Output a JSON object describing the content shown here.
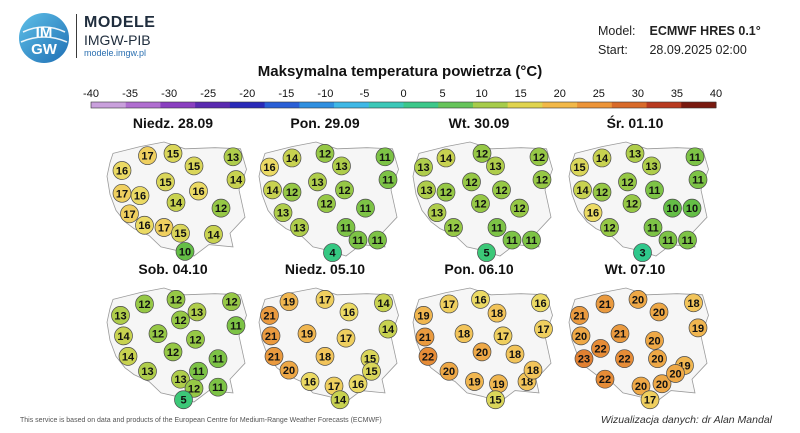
{
  "brand": {
    "logo_text_top": "IM",
    "logo_text_bottom": "GW",
    "title": "MODELE",
    "subtitle": "IMGW-PIB",
    "url": "modele.imgw.pl"
  },
  "model_info": {
    "model_label": "Model:",
    "model_value": "ECMWF HRES 0.1°",
    "start_label": "Start:",
    "start_value": "28.09.2025 02:00"
  },
  "title": "Maksymalna temperatura powietrza (°C)",
  "scale": {
    "ticks": [
      "-40",
      "-35",
      "-30",
      "-25",
      "-20",
      "-15",
      "-10",
      "-5",
      "0",
      "5",
      "10",
      "15",
      "20",
      "25",
      "30",
      "35",
      "40"
    ],
    "colors": [
      "#c9a0dc",
      "#b06ed0",
      "#8a3fc0",
      "#5a2ab0",
      "#2a2ab8",
      "#2a5fd6",
      "#2f8fe0",
      "#3fb8e6",
      "#3cc8b8",
      "#3cc88a",
      "#66c45a",
      "#a6cc4a",
      "#e0d44e",
      "#f2b848",
      "#ec9438",
      "#d86a2a",
      "#b83a20",
      "#7a1a10"
    ]
  },
  "maps": [
    {
      "day": "Niedz. 28.09",
      "points": [
        {
          "v": 17,
          "x": 0.33,
          "y": 0.12
        },
        {
          "v": 15,
          "x": 0.5,
          "y": 0.1
        },
        {
          "v": 13,
          "x": 0.9,
          "y": 0.13
        },
        {
          "v": 16,
          "x": 0.16,
          "y": 0.25
        },
        {
          "v": 15,
          "x": 0.64,
          "y": 0.21
        },
        {
          "v": 14,
          "x": 0.92,
          "y": 0.33
        },
        {
          "v": 17,
          "x": 0.16,
          "y": 0.45
        },
        {
          "v": 16,
          "x": 0.28,
          "y": 0.47
        },
        {
          "v": 15,
          "x": 0.45,
          "y": 0.35
        },
        {
          "v": 16,
          "x": 0.67,
          "y": 0.43
        },
        {
          "v": 17,
          "x": 0.21,
          "y": 0.63
        },
        {
          "v": 14,
          "x": 0.52,
          "y": 0.53
        },
        {
          "v": 12,
          "x": 0.82,
          "y": 0.58
        },
        {
          "v": 16,
          "x": 0.31,
          "y": 0.73
        },
        {
          "v": 17,
          "x": 0.44,
          "y": 0.75
        },
        {
          "v": 15,
          "x": 0.55,
          "y": 0.8
        },
        {
          "v": 14,
          "x": 0.77,
          "y": 0.81
        },
        {
          "v": 10,
          "x": 0.58,
          "y": 0.96
        }
      ]
    },
    {
      "day": "Pon. 29.09",
      "points": [
        {
          "v": 14,
          "x": 0.28,
          "y": 0.14
        },
        {
          "v": 12,
          "x": 0.5,
          "y": 0.1
        },
        {
          "v": 11,
          "x": 0.9,
          "y": 0.13
        },
        {
          "v": 16,
          "x": 0.13,
          "y": 0.22
        },
        {
          "v": 13,
          "x": 0.61,
          "y": 0.21
        },
        {
          "v": 11,
          "x": 0.92,
          "y": 0.33
        },
        {
          "v": 14,
          "x": 0.15,
          "y": 0.42
        },
        {
          "v": 12,
          "x": 0.28,
          "y": 0.44
        },
        {
          "v": 13,
          "x": 0.45,
          "y": 0.35
        },
        {
          "v": 12,
          "x": 0.63,
          "y": 0.42
        },
        {
          "v": 13,
          "x": 0.22,
          "y": 0.62
        },
        {
          "v": 12,
          "x": 0.51,
          "y": 0.54
        },
        {
          "v": 11,
          "x": 0.77,
          "y": 0.58
        },
        {
          "v": 13,
          "x": 0.33,
          "y": 0.75
        },
        {
          "v": 11,
          "x": 0.64,
          "y": 0.75
        },
        {
          "v": 11,
          "x": 0.72,
          "y": 0.86
        },
        {
          "v": 11,
          "x": 0.85,
          "y": 0.86
        },
        {
          "v": 4,
          "x": 0.55,
          "y": 0.97
        }
      ]
    },
    {
      "day": "Wt. 30.09",
      "points": [
        {
          "v": 14,
          "x": 0.28,
          "y": 0.14
        },
        {
          "v": 12,
          "x": 0.52,
          "y": 0.1
        },
        {
          "v": 12,
          "x": 0.9,
          "y": 0.13
        },
        {
          "v": 13,
          "x": 0.13,
          "y": 0.22
        },
        {
          "v": 13,
          "x": 0.61,
          "y": 0.21
        },
        {
          "v": 12,
          "x": 0.92,
          "y": 0.33
        },
        {
          "v": 13,
          "x": 0.15,
          "y": 0.42
        },
        {
          "v": 12,
          "x": 0.28,
          "y": 0.44
        },
        {
          "v": 12,
          "x": 0.45,
          "y": 0.35
        },
        {
          "v": 12,
          "x": 0.65,
          "y": 0.42
        },
        {
          "v": 13,
          "x": 0.22,
          "y": 0.62
        },
        {
          "v": 12,
          "x": 0.51,
          "y": 0.54
        },
        {
          "v": 12,
          "x": 0.77,
          "y": 0.58
        },
        {
          "v": 12,
          "x": 0.33,
          "y": 0.75
        },
        {
          "v": 11,
          "x": 0.62,
          "y": 0.75
        },
        {
          "v": 11,
          "x": 0.72,
          "y": 0.86
        },
        {
          "v": 11,
          "x": 0.85,
          "y": 0.86
        },
        {
          "v": 5,
          "x": 0.55,
          "y": 0.97
        }
      ]
    },
    {
      "day": "Śr. 01.10",
      "points": [
        {
          "v": 14,
          "x": 0.28,
          "y": 0.14
        },
        {
          "v": 13,
          "x": 0.5,
          "y": 0.1
        },
        {
          "v": 11,
          "x": 0.9,
          "y": 0.13
        },
        {
          "v": 15,
          "x": 0.13,
          "y": 0.22
        },
        {
          "v": 13,
          "x": 0.61,
          "y": 0.21
        },
        {
          "v": 11,
          "x": 0.92,
          "y": 0.33
        },
        {
          "v": 14,
          "x": 0.15,
          "y": 0.42
        },
        {
          "v": 12,
          "x": 0.28,
          "y": 0.44
        },
        {
          "v": 12,
          "x": 0.45,
          "y": 0.35
        },
        {
          "v": 11,
          "x": 0.63,
          "y": 0.42
        },
        {
          "v": 16,
          "x": 0.22,
          "y": 0.62
        },
        {
          "v": 12,
          "x": 0.48,
          "y": 0.54
        },
        {
          "v": 10,
          "x": 0.75,
          "y": 0.58
        },
        {
          "v": 10,
          "x": 0.88,
          "y": 0.58
        },
        {
          "v": 12,
          "x": 0.33,
          "y": 0.75
        },
        {
          "v": 11,
          "x": 0.62,
          "y": 0.75
        },
        {
          "v": 11,
          "x": 0.72,
          "y": 0.86
        },
        {
          "v": 11,
          "x": 0.85,
          "y": 0.86
        },
        {
          "v": 3,
          "x": 0.55,
          "y": 0.97
        }
      ]
    },
    {
      "day": "Sob. 04.10",
      "points": [
        {
          "v": 12,
          "x": 0.31,
          "y": 0.14
        },
        {
          "v": 12,
          "x": 0.52,
          "y": 0.1
        },
        {
          "v": 12,
          "x": 0.89,
          "y": 0.12
        },
        {
          "v": 13,
          "x": 0.15,
          "y": 0.24
        },
        {
          "v": 13,
          "x": 0.66,
          "y": 0.21
        },
        {
          "v": 11,
          "x": 0.92,
          "y": 0.33
        },
        {
          "v": 14,
          "x": 0.17,
          "y": 0.42
        },
        {
          "v": 12,
          "x": 0.4,
          "y": 0.4
        },
        {
          "v": 12,
          "x": 0.55,
          "y": 0.28
        },
        {
          "v": 12,
          "x": 0.65,
          "y": 0.45
        },
        {
          "v": 14,
          "x": 0.2,
          "y": 0.6
        },
        {
          "v": 12,
          "x": 0.5,
          "y": 0.56
        },
        {
          "v": 11,
          "x": 0.8,
          "y": 0.62
        },
        {
          "v": 13,
          "x": 0.33,
          "y": 0.73
        },
        {
          "v": 13,
          "x": 0.55,
          "y": 0.8
        },
        {
          "v": 12,
          "x": 0.64,
          "y": 0.88
        },
        {
          "v": 11,
          "x": 0.8,
          "y": 0.87
        },
        {
          "v": 11,
          "x": 0.67,
          "y": 0.73
        },
        {
          "v": 5,
          "x": 0.57,
          "y": 0.98
        }
      ]
    },
    {
      "day": "Niedz. 05.10",
      "points": [
        {
          "v": 19,
          "x": 0.26,
          "y": 0.12
        },
        {
          "v": 17,
          "x": 0.5,
          "y": 0.1
        },
        {
          "v": 14,
          "x": 0.89,
          "y": 0.13
        },
        {
          "v": 21,
          "x": 0.13,
          "y": 0.24
        },
        {
          "v": 16,
          "x": 0.66,
          "y": 0.21
        },
        {
          "v": 14,
          "x": 0.92,
          "y": 0.36
        },
        {
          "v": 21,
          "x": 0.14,
          "y": 0.42
        },
        {
          "v": 19,
          "x": 0.38,
          "y": 0.4
        },
        {
          "v": 17,
          "x": 0.64,
          "y": 0.44
        },
        {
          "v": 21,
          "x": 0.16,
          "y": 0.6
        },
        {
          "v": 18,
          "x": 0.5,
          "y": 0.6
        },
        {
          "v": 15,
          "x": 0.8,
          "y": 0.62
        },
        {
          "v": 20,
          "x": 0.26,
          "y": 0.72
        },
        {
          "v": 16,
          "x": 0.4,
          "y": 0.82
        },
        {
          "v": 17,
          "x": 0.56,
          "y": 0.86
        },
        {
          "v": 16,
          "x": 0.72,
          "y": 0.84
        },
        {
          "v": 15,
          "x": 0.81,
          "y": 0.73
        },
        {
          "v": 14,
          "x": 0.6,
          "y": 0.98
        }
      ]
    },
    {
      "day": "Pon. 06.10",
      "points": [
        {
          "v": 19,
          "x": 0.13,
          "y": 0.24
        },
        {
          "v": 17,
          "x": 0.3,
          "y": 0.14
        },
        {
          "v": 16,
          "x": 0.51,
          "y": 0.1
        },
        {
          "v": 16,
          "x": 0.91,
          "y": 0.13
        },
        {
          "v": 18,
          "x": 0.62,
          "y": 0.22
        },
        {
          "v": 17,
          "x": 0.93,
          "y": 0.36
        },
        {
          "v": 21,
          "x": 0.14,
          "y": 0.43
        },
        {
          "v": 18,
          "x": 0.4,
          "y": 0.4
        },
        {
          "v": 17,
          "x": 0.66,
          "y": 0.42
        },
        {
          "v": 22,
          "x": 0.16,
          "y": 0.6
        },
        {
          "v": 20,
          "x": 0.52,
          "y": 0.56
        },
        {
          "v": 18,
          "x": 0.74,
          "y": 0.58
        },
        {
          "v": 20,
          "x": 0.3,
          "y": 0.73
        },
        {
          "v": 19,
          "x": 0.47,
          "y": 0.82
        },
        {
          "v": 19,
          "x": 0.63,
          "y": 0.84
        },
        {
          "v": 18,
          "x": 0.82,
          "y": 0.82
        },
        {
          "v": 18,
          "x": 0.86,
          "y": 0.72
        },
        {
          "v": 15,
          "x": 0.61,
          "y": 0.98
        }
      ]
    },
    {
      "day": "Wt. 07.10",
      "points": [
        {
          "v": 21,
          "x": 0.3,
          "y": 0.14
        },
        {
          "v": 20,
          "x": 0.52,
          "y": 0.1
        },
        {
          "v": 18,
          "x": 0.89,
          "y": 0.13
        },
        {
          "v": 21,
          "x": 0.13,
          "y": 0.24
        },
        {
          "v": 20,
          "x": 0.66,
          "y": 0.21
        },
        {
          "v": 19,
          "x": 0.92,
          "y": 0.35
        },
        {
          "v": 20,
          "x": 0.14,
          "y": 0.42
        },
        {
          "v": 21,
          "x": 0.4,
          "y": 0.4
        },
        {
          "v": 20,
          "x": 0.63,
          "y": 0.46
        },
        {
          "v": 22,
          "x": 0.27,
          "y": 0.53
        },
        {
          "v": 23,
          "x": 0.16,
          "y": 0.62
        },
        {
          "v": 22,
          "x": 0.43,
          "y": 0.62
        },
        {
          "v": 20,
          "x": 0.65,
          "y": 0.62
        },
        {
          "v": 19,
          "x": 0.83,
          "y": 0.68
        },
        {
          "v": 22,
          "x": 0.3,
          "y": 0.8
        },
        {
          "v": 20,
          "x": 0.54,
          "y": 0.86
        },
        {
          "v": 20,
          "x": 0.68,
          "y": 0.84
        },
        {
          "v": 20,
          "x": 0.77,
          "y": 0.75
        },
        {
          "v": 17,
          "x": 0.6,
          "y": 0.98
        }
      ]
    }
  ],
  "footer": {
    "source": "This service is based on data and products of the European Centre for Medium-Range Weather Forecasts (ECMWF)",
    "credit": "Wizualizacja danych: dr Alan Mandal"
  }
}
